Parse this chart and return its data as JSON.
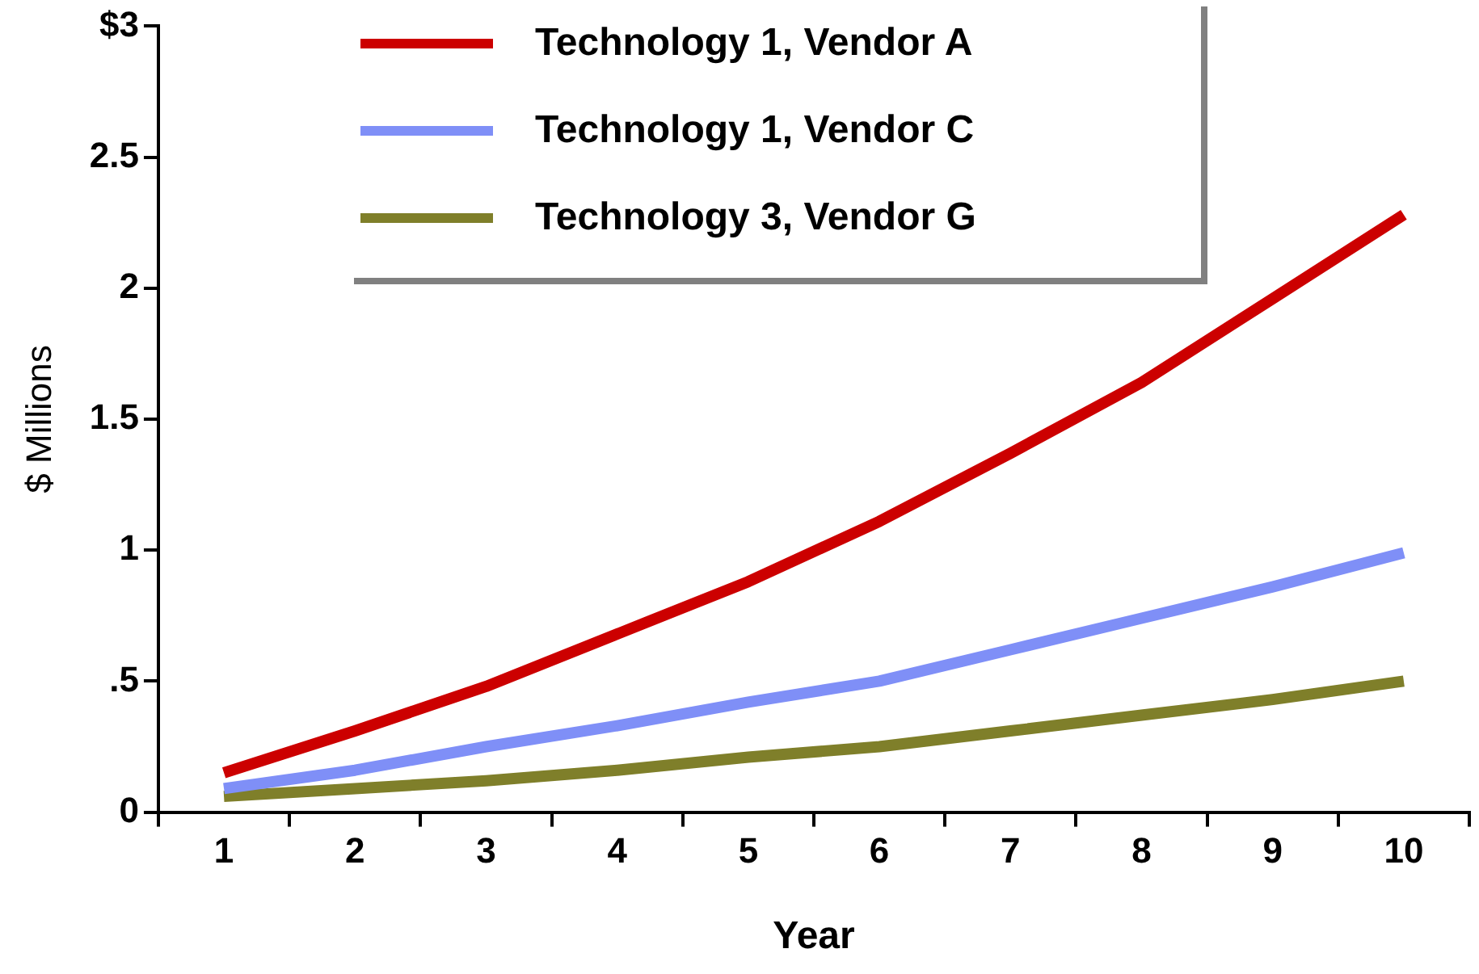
{
  "chart_data": {
    "type": "line",
    "xlabel": "Year",
    "ylabel": "$ Millions",
    "categories": [
      "1",
      "2",
      "3",
      "4",
      "5",
      "6",
      "7",
      "8",
      "9",
      "10"
    ],
    "series": [
      {
        "name": "Technology 1, Vendor A",
        "color": "#cc0000",
        "values": [
          0.15,
          0.31,
          0.48,
          0.68,
          0.88,
          1.11,
          1.37,
          1.64,
          1.96,
          2.28
        ]
      },
      {
        "name": "Technology 1, Vendor C",
        "color": "#7f8ff7",
        "values": [
          0.09,
          0.16,
          0.25,
          0.33,
          0.42,
          0.5,
          0.62,
          0.74,
          0.86,
          0.99
        ]
      },
      {
        "name": "Technology 3, Vendor G",
        "color": "#7f7f2a",
        "values": [
          0.06,
          0.09,
          0.12,
          0.16,
          0.21,
          0.25,
          0.31,
          0.37,
          0.43,
          0.5
        ]
      }
    ],
    "ylim": [
      0,
      3
    ],
    "yticks": [
      0,
      {
        "value": 0.5,
        "label": ".5"
      },
      1,
      1.5,
      2,
      2.5,
      {
        "value": 3,
        "label": "$3"
      }
    ],
    "legend": "top",
    "grid": false,
    "marker": "none",
    "line_style": "solid"
  }
}
